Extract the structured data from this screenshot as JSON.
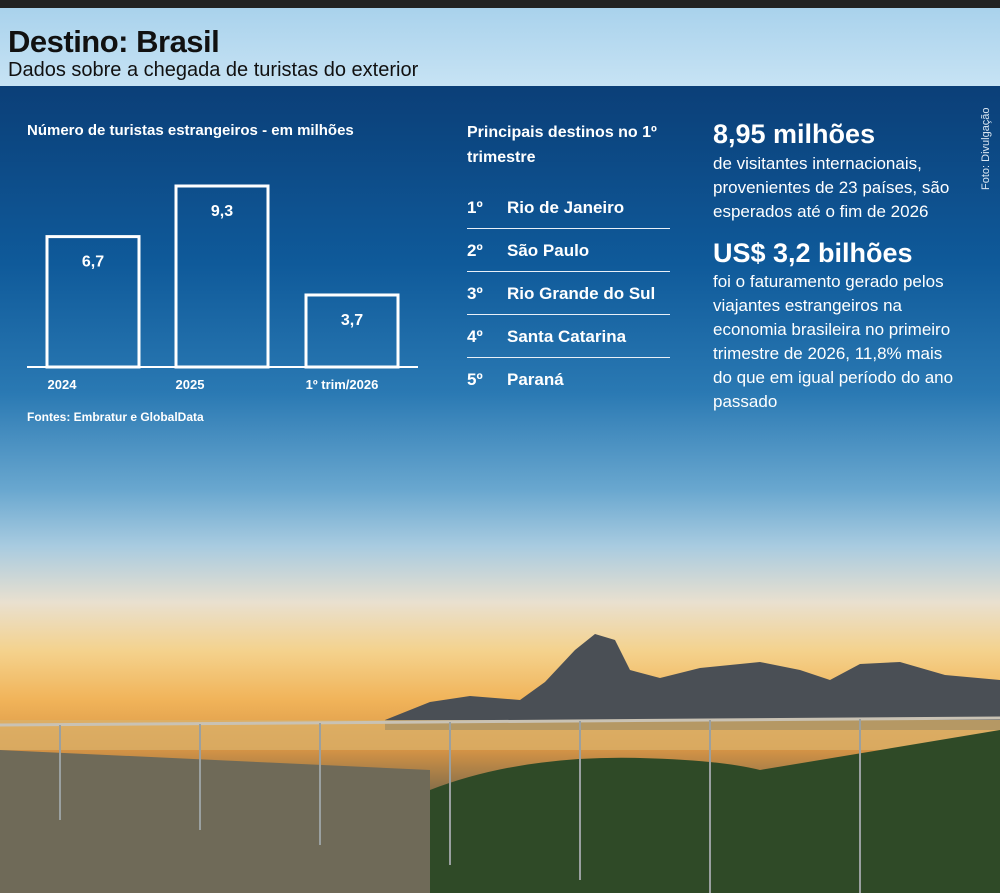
{
  "header": {
    "title": "Destino: Brasil",
    "subtitle": "Dados sobre a chegada de turistas do exterior"
  },
  "photo_credit": "Foto: Divulgação",
  "chart_data": {
    "type": "bar",
    "title": "Número de turistas estrangeiros - em  milhões",
    "categories": [
      "2024",
      "2025",
      "1º trim/2026"
    ],
    "values": [
      6.7,
      9.3,
      3.7
    ],
    "value_labels": [
      "6,7",
      "9,3",
      "3,7"
    ],
    "xlabel": "",
    "ylabel": "",
    "ylim": [
      0,
      9.3
    ],
    "grid": false,
    "source": "Fontes: Embratur e GlobalData",
    "colors": {
      "bar_fill": "transparent",
      "bar_stroke": "#ffffff"
    }
  },
  "destinations": {
    "title": "Principais destinos no 1º trimestre",
    "items": [
      {
        "rank": "1º",
        "name": "Rio de Janeiro"
      },
      {
        "rank": "2º",
        "name": "São Paulo"
      },
      {
        "rank": "3º",
        "name": "Rio Grande do Sul"
      },
      {
        "rank": "4º",
        "name": "Santa Catarina"
      },
      {
        "rank": "5º",
        "name": "Paraná"
      }
    ]
  },
  "facts": [
    {
      "number": "8,95 milhões",
      "text": "de visitantes internacionais, provenientes de 23 países, são esperados até o fim de 2026"
    },
    {
      "number": "US$ 3,2 bilhões",
      "text": "foi o faturamento gerado pelos viajantes estrangeiros na economia brasileira no primeiro trimestre de 2026, 11,8% mais do que em igual período do ano passado"
    }
  ]
}
